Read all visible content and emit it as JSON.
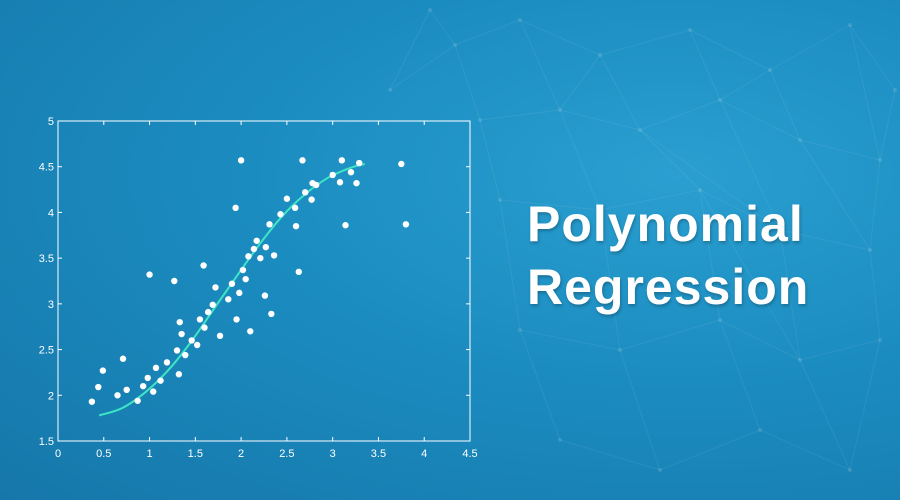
{
  "title_lines": [
    "Polynomial",
    "Regression"
  ],
  "colors": {
    "background": "#1b8cc0",
    "axes": "#ffffff",
    "points": "#ffffff",
    "fit_curve": "#3fe6c4"
  },
  "chart_data": {
    "type": "scatter",
    "xlim": [
      0,
      4.5
    ],
    "ylim": [
      1.5,
      5
    ],
    "x_ticks": [
      0,
      0.5,
      1,
      1.5,
      2,
      2.5,
      3,
      3.5,
      4,
      4.5
    ],
    "y_ticks": [
      1.5,
      2,
      2.5,
      3,
      3.5,
      4,
      4.5,
      5
    ],
    "x_tick_labels": [
      "0",
      "0.5",
      "1",
      "1.5",
      "2",
      "2.5",
      "3",
      "3.5",
      "4",
      "4.5"
    ],
    "y_tick_labels": [
      "1.5",
      "2",
      "2.5",
      "3",
      "3.5",
      "4",
      "4.5",
      "5"
    ],
    "grid": false,
    "points": [
      [
        0.37,
        1.93
      ],
      [
        0.44,
        2.09
      ],
      [
        0.49,
        2.27
      ],
      [
        0.65,
        2.0
      ],
      [
        0.71,
        2.4
      ],
      [
        0.75,
        2.06
      ],
      [
        0.87,
        1.94
      ],
      [
        0.93,
        2.1
      ],
      [
        0.98,
        2.19
      ],
      [
        1.0,
        3.32
      ],
      [
        1.04,
        2.04
      ],
      [
        1.07,
        2.3
      ],
      [
        1.12,
        2.16
      ],
      [
        1.19,
        2.36
      ],
      [
        1.27,
        3.25
      ],
      [
        1.3,
        2.49
      ],
      [
        1.32,
        2.23
      ],
      [
        1.33,
        2.8
      ],
      [
        1.35,
        2.67
      ],
      [
        1.39,
        2.44
      ],
      [
        1.46,
        2.6
      ],
      [
        1.52,
        2.55
      ],
      [
        1.55,
        2.83
      ],
      [
        1.59,
        3.42
      ],
      [
        1.6,
        2.74
      ],
      [
        1.64,
        2.91
      ],
      [
        1.69,
        2.99
      ],
      [
        1.72,
        3.18
      ],
      [
        1.77,
        2.65
      ],
      [
        1.86,
        3.05
      ],
      [
        1.9,
        3.22
      ],
      [
        1.94,
        4.05
      ],
      [
        1.95,
        2.83
      ],
      [
        1.98,
        3.12
      ],
      [
        2.0,
        4.57
      ],
      [
        2.02,
        3.37
      ],
      [
        2.05,
        3.27
      ],
      [
        2.08,
        3.52
      ],
      [
        2.1,
        2.7
      ],
      [
        2.14,
        3.6
      ],
      [
        2.17,
        3.69
      ],
      [
        2.21,
        3.5
      ],
      [
        2.26,
        3.09
      ],
      [
        2.27,
        3.62
      ],
      [
        2.31,
        3.87
      ],
      [
        2.33,
        2.89
      ],
      [
        2.36,
        3.53
      ],
      [
        2.43,
        3.98
      ],
      [
        2.5,
        4.15
      ],
      [
        2.59,
        4.05
      ],
      [
        2.6,
        3.85
      ],
      [
        2.63,
        3.35
      ],
      [
        2.67,
        4.57
      ],
      [
        2.7,
        4.22
      ],
      [
        2.77,
        4.14
      ],
      [
        2.78,
        4.32
      ],
      [
        2.82,
        4.3
      ],
      [
        3.0,
        4.41
      ],
      [
        3.08,
        4.33
      ],
      [
        3.1,
        4.57
      ],
      [
        3.14,
        3.86
      ],
      [
        3.2,
        4.44
      ],
      [
        3.26,
        4.32
      ],
      [
        3.29,
        4.54
      ],
      [
        3.75,
        4.53
      ],
      [
        3.8,
        3.87
      ]
    ],
    "fit_curve": [
      [
        0.45,
        1.78
      ],
      [
        0.7,
        1.86
      ],
      [
        0.95,
        2.03
      ],
      [
        1.2,
        2.27
      ],
      [
        1.45,
        2.58
      ],
      [
        1.7,
        2.94
      ],
      [
        1.95,
        3.3
      ],
      [
        2.2,
        3.65
      ],
      [
        2.45,
        3.96
      ],
      [
        2.7,
        4.2
      ],
      [
        2.95,
        4.38
      ],
      [
        3.2,
        4.49
      ],
      [
        3.35,
        4.53
      ]
    ]
  }
}
